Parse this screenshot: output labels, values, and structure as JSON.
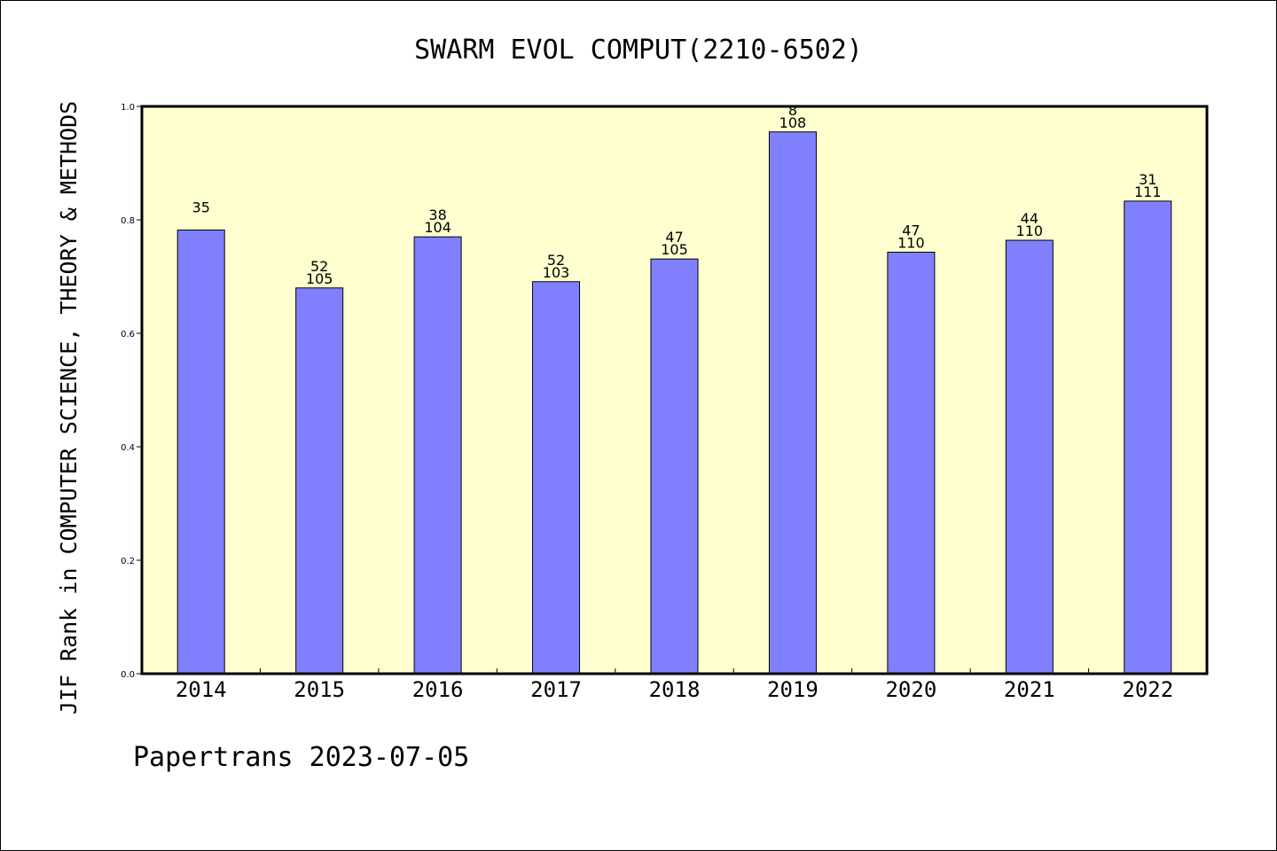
{
  "chart_data": {
    "type": "bar",
    "title": "SWARM EVOL COMPUT(2210-6502)",
    "xlabel": "",
    "ylabel": "JIF Rank in COMPUTER SCIENCE, THEORY & METHODS",
    "ylim": [
      0,
      1.0
    ],
    "yticks": [
      "0.0",
      "0.2",
      "0.4",
      "0.6",
      "0.8",
      "1.0"
    ],
    "categories": [
      "2014",
      "2015",
      "2016",
      "2017",
      "2018",
      "2019",
      "2020",
      "2021",
      "2022"
    ],
    "values": [
      0.782,
      0.68,
      0.77,
      0.691,
      0.731,
      0.955,
      0.743,
      0.764,
      0.833
    ],
    "labels": [
      {
        "top": "35",
        "bottom": ""
      },
      {
        "top": "52",
        "bottom": "105"
      },
      {
        "top": "38",
        "bottom": "104"
      },
      {
        "top": "52",
        "bottom": "103"
      },
      {
        "top": "47",
        "bottom": "105"
      },
      {
        "top": "8",
        "bottom": "108"
      },
      {
        "top": "47",
        "bottom": "110"
      },
      {
        "top": "44",
        "bottom": "110"
      },
      {
        "top": "31",
        "bottom": "111"
      }
    ],
    "grid": false,
    "plot_background": "#ffffd0",
    "bar_color": "#8080ff"
  },
  "footer": {
    "note": "Papertrans 2023-07-05"
  }
}
